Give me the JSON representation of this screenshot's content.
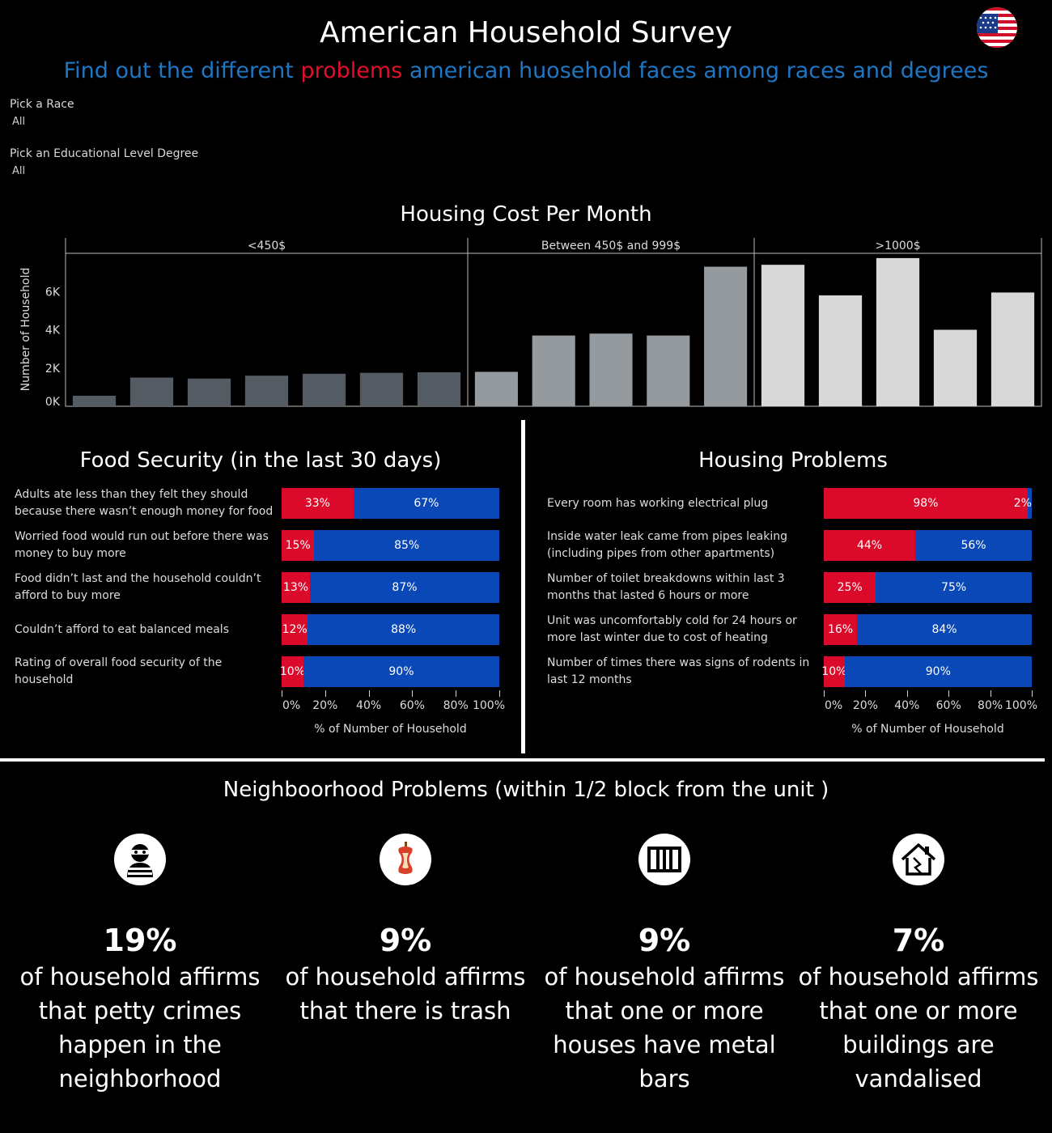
{
  "header": {
    "title": "American Household Survey",
    "subtitle_part1": "Find out the  different ",
    "subtitle_highlight": "problems",
    "subtitle_part2": " american huosehold faces among races and degrees",
    "flag_icon": "us-flag-icon"
  },
  "filters": {
    "race_label": "Pick a Race",
    "race_value": "All",
    "degree_label": "Pick an Educational Level Degree",
    "degree_value": "All"
  },
  "colors": {
    "red": "#dc0a2a",
    "blue": "#0a48b8",
    "subtitle_blue": "#1f77c4",
    "bar_low": "#545b63",
    "bar_mid": "#949a9d",
    "bar_high": "#d8d8d8"
  },
  "chart_data": [
    {
      "type": "bar",
      "title": "Housing Cost Per Month",
      "ylabel": "Number of Household",
      "yticks": [
        "0K",
        "2K",
        "4K",
        "6K"
      ],
      "ylim": [
        0,
        8000
      ],
      "panels": [
        {
          "name": "<450$",
          "values": [
            550,
            1500,
            1450,
            1600,
            1700,
            1750,
            1780
          ]
        },
        {
          "name": "Between 450$ and 999$",
          "values": [
            1800,
            3700,
            3800,
            3700,
            7300
          ]
        },
        {
          "name": ">1000$",
          "values": [
            7400,
            5800,
            7750,
            4000,
            5950
          ]
        }
      ]
    },
    {
      "type": "bar",
      "title": "Food Security (in the last 30 days)",
      "xlabel": "% of Number of Household",
      "xticks": [
        "0%",
        "20%",
        "40%",
        "60%",
        "80%",
        "100%"
      ],
      "rows": [
        {
          "label": "Adults ate less than they felt they should because there wasn’t enough money for food",
          "yes": 33,
          "no": 67,
          "yes_label": "33%",
          "no_label": "67%"
        },
        {
          "label": "Worried food would run out before there was money to buy more",
          "yes": 15,
          "no": 85,
          "yes_label": "15%",
          "no_label": "85%"
        },
        {
          "label": "Food didn’t last and the household couldn’t afford to buy more",
          "yes": 13,
          "no": 87,
          "yes_label": "13%",
          "no_label": "87%"
        },
        {
          "label": "Couldn’t afford to eat balanced meals",
          "yes": 12,
          "no": 88,
          "yes_label": "12%",
          "no_label": "88%"
        },
        {
          "label": "Rating of overall food security of the household",
          "yes": 10,
          "no": 90,
          "yes_label": "10%",
          "no_label": "90%"
        }
      ]
    },
    {
      "type": "bar",
      "title": "Housing Problems",
      "xlabel": "% of Number of Household",
      "xticks": [
        "0%",
        "20%",
        "40%",
        "60%",
        "80%",
        "100%"
      ],
      "rows": [
        {
          "label": "Every room has working electrical plug",
          "yes": 98,
          "no": 2,
          "yes_label": "98%",
          "no_label": "2%"
        },
        {
          "label": "Inside water leak came from pipes leaking (including pipes from other apartments)",
          "yes": 44,
          "no": 56,
          "yes_label": "44%",
          "no_label": "56%"
        },
        {
          "label": "Number of toilet breakdowns within last 3 months that lasted 6 hours or more",
          "yes": 25,
          "no": 75,
          "yes_label": "25%",
          "no_label": "75%"
        },
        {
          "label": "Unit was uncomfortably cold for 24 hours or more last winter due to cost of heating",
          "yes": 16,
          "no": 84,
          "yes_label": "16%",
          "no_label": "84%"
        },
        {
          "label": "Number of times there was signs of rodents in last 12 months",
          "yes": 10,
          "no": 90,
          "yes_label": "10%",
          "no_label": "90%"
        }
      ]
    }
  ],
  "neighborhood": {
    "title": "Neighboorhood Problems (within 1/2 block from the unit )",
    "items": [
      {
        "icon": "burglar-icon",
        "pct": "19%",
        "text": "of household affirms that petty crimes happen in the neighborhood"
      },
      {
        "icon": "apple-core-trash-icon",
        "pct": "9%",
        "text": "of household affirms that there is  trash"
      },
      {
        "icon": "metal-bars-icon",
        "pct": "9%",
        "text": "of household affirms that one or more houses have metal bars"
      },
      {
        "icon": "vandalised-house-icon",
        "pct": "7%",
        "text": "of household affirms that one or more buildings are vandalised"
      }
    ]
  }
}
